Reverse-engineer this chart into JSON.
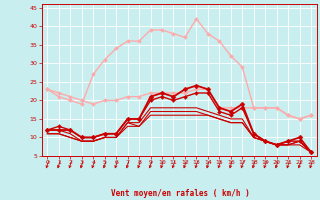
{
  "background_color": "#c8eef0",
  "grid_color": "#ffffff",
  "xlabel": "Vent moyen/en rafales ( km/h )",
  "xlabel_color": "#cc0000",
  "xlim": [
    -0.5,
    23.5
  ],
  "ylim": [
    5,
    46
  ],
  "yticks": [
    5,
    10,
    15,
    20,
    25,
    30,
    35,
    40,
    45
  ],
  "xticks": [
    0,
    1,
    2,
    3,
    4,
    5,
    6,
    7,
    8,
    9,
    10,
    11,
    12,
    13,
    14,
    15,
    16,
    17,
    18,
    19,
    20,
    21,
    22,
    23
  ],
  "series": [
    {
      "x": [
        0,
        1,
        2,
        3,
        4,
        5,
        6,
        7,
        8,
        9,
        10,
        11,
        12,
        13,
        14,
        15,
        16,
        17,
        18,
        19,
        20,
        21,
        22,
        23
      ],
      "y": [
        23,
        22,
        21,
        20,
        19,
        20,
        20,
        21,
        21,
        22,
        22,
        22,
        22,
        23,
        23,
        18,
        18,
        18,
        18,
        18,
        18,
        16,
        15,
        16
      ],
      "color": "#ffaaaa",
      "lw": 1.0,
      "marker": "D",
      "ms": 2.0
    },
    {
      "x": [
        0,
        1,
        2,
        3,
        4,
        5,
        6,
        7,
        8,
        9,
        10,
        11,
        12,
        13,
        14,
        15,
        16,
        17,
        18,
        19,
        20,
        21,
        22,
        23
      ],
      "y": [
        23,
        21,
        20,
        19,
        27,
        31,
        34,
        36,
        36,
        39,
        39,
        38,
        37,
        42,
        38,
        36,
        32,
        29,
        18,
        18,
        18,
        16,
        15,
        16
      ],
      "color": "#ffaaaa",
      "lw": 1.0,
      "marker": "D",
      "ms": 2.0
    },
    {
      "x": [
        0,
        1,
        2,
        3,
        4,
        5,
        6,
        7,
        8,
        9,
        10,
        11,
        12,
        13,
        14,
        15,
        16,
        17,
        18,
        19,
        20,
        21,
        22,
        23
      ],
      "y": [
        12,
        12,
        12,
        10,
        10,
        11,
        11,
        15,
        15,
        21,
        22,
        21,
        23,
        24,
        23,
        18,
        17,
        19,
        11,
        9,
        8,
        9,
        10,
        6
      ],
      "color": "#cc0000",
      "lw": 1.3,
      "marker": "D",
      "ms": 2.5
    },
    {
      "x": [
        0,
        1,
        2,
        3,
        4,
        5,
        6,
        7,
        8,
        9,
        10,
        11,
        12,
        13,
        14,
        15,
        16,
        17,
        18,
        19,
        20,
        21,
        22,
        23
      ],
      "y": [
        12,
        13,
        12,
        10,
        10,
        11,
        11,
        15,
        15,
        20,
        21,
        20,
        21,
        22,
        22,
        17,
        16,
        18,
        11,
        9,
        8,
        9,
        9,
        6
      ],
      "color": "#cc0000",
      "lw": 1.0,
      "marker": "D",
      "ms": 2.0
    },
    {
      "x": [
        0,
        1,
        2,
        3,
        4,
        5,
        6,
        7,
        8,
        9,
        10,
        11,
        12,
        13,
        14,
        15,
        16,
        17,
        18,
        19,
        20,
        21,
        22,
        23
      ],
      "y": [
        12,
        12,
        11,
        9,
        9,
        10,
        10,
        14,
        14,
        18,
        18,
        18,
        18,
        18,
        17,
        16,
        15,
        15,
        10,
        9,
        8,
        8,
        9,
        6
      ],
      "color": "#cc0000",
      "lw": 0.8,
      "marker": null,
      "ms": 0
    },
    {
      "x": [
        0,
        1,
        2,
        3,
        4,
        5,
        6,
        7,
        8,
        9,
        10,
        11,
        12,
        13,
        14,
        15,
        16,
        17,
        18,
        19,
        20,
        21,
        22,
        23
      ],
      "y": [
        11,
        11,
        10,
        9,
        9,
        10,
        10,
        14,
        13,
        17,
        17,
        17,
        17,
        17,
        16,
        15,
        14,
        14,
        10,
        9,
        8,
        8,
        9,
        6
      ],
      "color": "#cc0000",
      "lw": 0.8,
      "marker": null,
      "ms": 0
    },
    {
      "x": [
        0,
        1,
        2,
        3,
        4,
        5,
        6,
        7,
        8,
        9,
        10,
        11,
        12,
        13,
        14,
        15,
        16,
        17,
        18,
        19,
        20,
        21,
        22,
        23
      ],
      "y": [
        11,
        11,
        10,
        9,
        9,
        10,
        10,
        13,
        13,
        16,
        16,
        16,
        16,
        16,
        16,
        15,
        14,
        14,
        10,
        9,
        8,
        8,
        8,
        6
      ],
      "color": "#cc0000",
      "lw": 0.8,
      "marker": null,
      "ms": 0
    }
  ]
}
